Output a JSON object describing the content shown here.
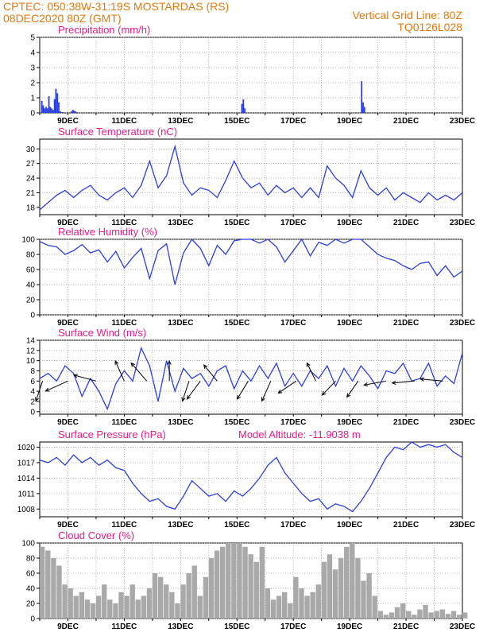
{
  "header": {
    "line1_left": "CPTEC:   050:38W-31:19S   MOSTARDAS (RS)",
    "line2_left": "08DEC2020 80Z (GMT)",
    "line1_right": "Vertical Grid Line: 80Z",
    "line2_right": "TQ0126L028"
  },
  "colors": {
    "series": "#2a3fe0",
    "bars_precip": "#2a3fe0",
    "bars_cloud": "#a9a9a9",
    "title": "#e0208a",
    "header": "#e07a10"
  },
  "chart_data": [
    {
      "type": "bar",
      "title": "Precipitation (mm/h)",
      "xlabels": [
        "9DEC",
        "11DEC",
        "13DEC",
        "15DEC",
        "17DEC",
        "19DEC",
        "21DEC",
        "23DEC"
      ],
      "ylim": [
        0,
        5
      ],
      "yticks": [
        0,
        1,
        2,
        3,
        4,
        5
      ],
      "x_day": [
        8.05,
        8.1,
        8.15,
        8.2,
        8.25,
        8.3,
        8.35,
        8.4,
        8.45,
        8.5,
        8.55,
        8.6,
        8.65,
        8.7,
        8.75,
        8.8,
        9.1,
        9.15,
        9.2,
        9.25,
        9.3,
        15.15,
        15.2,
        15.25,
        19.4,
        19.45,
        19.5
      ],
      "values": [
        0.8,
        0.5,
        0.3,
        0.4,
        0.3,
        1.1,
        0.4,
        0.3,
        0.2,
        0.9,
        1.6,
        1.3,
        0.7,
        0.1,
        0.05,
        0.05,
        0.1,
        0.2,
        0.15,
        0.1,
        0.05,
        0.6,
        0.9,
        0.3,
        2.1,
        0.7,
        0.4
      ]
    },
    {
      "type": "line",
      "title": "Surface Temperature (nC)",
      "xlabels": [
        "9DEC",
        "11DEC",
        "13DEC",
        "15DEC",
        "17DEC",
        "19DEC",
        "21DEC",
        "23DEC"
      ],
      "ylim": [
        16.5,
        32
      ],
      "yticks": [
        18,
        21,
        24,
        27,
        30
      ],
      "x_day": [
        8.0,
        8.3,
        8.6,
        8.9,
        9.2,
        9.5,
        9.8,
        10.1,
        10.4,
        10.7,
        11.0,
        11.3,
        11.6,
        11.9,
        12.2,
        12.5,
        12.8,
        13.1,
        13.4,
        13.7,
        14.0,
        14.3,
        14.6,
        14.9,
        15.2,
        15.5,
        15.8,
        16.1,
        16.4,
        16.7,
        17.0,
        17.3,
        17.6,
        17.9,
        18.2,
        18.5,
        18.8,
        19.1,
        19.4,
        19.7,
        20.0,
        20.3,
        20.6,
        20.9,
        21.2,
        21.5,
        21.8,
        22.1,
        22.4,
        22.7,
        23.0
      ],
      "values": [
        17.5,
        19.0,
        20.5,
        21.5,
        20.0,
        21.5,
        22.5,
        20.5,
        19.5,
        21.0,
        22.0,
        20.0,
        22.5,
        27.5,
        22.0,
        24.5,
        30.5,
        23.0,
        20.5,
        22.0,
        21.5,
        20.0,
        23.5,
        27.5,
        24.0,
        22.0,
        23.0,
        20.5,
        22.5,
        21.0,
        22.0,
        20.0,
        22.0,
        20.0,
        26.5,
        24.0,
        22.5,
        20.0,
        25.5,
        22.0,
        20.5,
        22.0,
        19.5,
        21.0,
        20.0,
        19.0,
        21.0,
        19.5,
        20.5,
        19.5,
        21.0
      ]
    },
    {
      "type": "line",
      "title": "Relative Humidity (%)",
      "xlabels": [
        "9DEC",
        "11DEC",
        "13DEC",
        "15DEC",
        "17DEC",
        "19DEC",
        "21DEC",
        "23DEC"
      ],
      "ylim": [
        0,
        100
      ],
      "yticks": [
        0,
        20,
        40,
        60,
        80,
        100
      ],
      "x_day": [
        8.0,
        8.3,
        8.6,
        8.9,
        9.2,
        9.5,
        9.8,
        10.1,
        10.4,
        10.7,
        11.0,
        11.3,
        11.6,
        11.9,
        12.2,
        12.5,
        12.8,
        13.1,
        13.4,
        13.7,
        14.0,
        14.3,
        14.6,
        14.9,
        15.2,
        15.5,
        15.8,
        16.1,
        16.4,
        16.7,
        17.0,
        17.3,
        17.6,
        17.9,
        18.2,
        18.5,
        18.8,
        19.1,
        19.4,
        19.7,
        20.0,
        20.3,
        20.6,
        20.9,
        21.2,
        21.5,
        21.8,
        22.1,
        22.4,
        22.7,
        23.0
      ],
      "values": [
        97,
        92,
        90,
        80,
        85,
        93,
        82,
        86,
        70,
        84,
        62,
        76,
        88,
        48,
        85,
        94,
        40,
        82,
        100,
        88,
        65,
        92,
        80,
        98,
        100,
        100,
        95,
        100,
        90,
        70,
        85,
        100,
        78,
        96,
        92,
        100,
        95,
        100,
        100,
        90,
        80,
        75,
        72,
        65,
        60,
        68,
        70,
        52,
        65,
        50,
        58
      ]
    },
    {
      "type": "line",
      "title": "Surface Wind (m/s)",
      "xlabels": [
        "9DEC",
        "11DEC",
        "13DEC",
        "15DEC",
        "17DEC",
        "19DEC",
        "21DEC",
        "23DEC"
      ],
      "ylim": [
        -0.5,
        14
      ],
      "yticks": [
        0,
        2,
        4,
        6,
        8,
        10,
        12,
        14
      ],
      "x_day": [
        8.0,
        8.3,
        8.6,
        8.9,
        9.2,
        9.5,
        9.8,
        10.1,
        10.4,
        10.7,
        11.0,
        11.3,
        11.6,
        11.9,
        12.2,
        12.5,
        12.8,
        13.1,
        13.4,
        13.7,
        14.0,
        14.3,
        14.6,
        14.9,
        15.2,
        15.5,
        15.8,
        16.1,
        16.4,
        16.7,
        17.0,
        17.3,
        17.6,
        17.9,
        18.2,
        18.5,
        18.8,
        19.1,
        19.4,
        19.7,
        20.0,
        20.3,
        20.6,
        20.9,
        21.2,
        21.5,
        21.8,
        22.1,
        22.4,
        22.7,
        23.0
      ],
      "values": [
        6.5,
        7.5,
        6.0,
        9.0,
        7.5,
        3.0,
        6.5,
        4.0,
        0.5,
        5.5,
        8.0,
        6.0,
        12.5,
        9.0,
        2.0,
        10.0,
        4.0,
        8.5,
        6.5,
        7.5,
        5.0,
        8.0,
        9.0,
        4.5,
        8.0,
        6.0,
        9.0,
        6.5,
        9.5,
        5.0,
        7.5,
        5.0,
        8.0,
        6.5,
        9.0,
        5.0,
        8.5,
        6.0,
        9.0,
        7.0,
        4.5,
        8.0,
        7.5,
        9.5,
        6.0,
        6.5,
        9.5,
        5.0,
        7.0,
        5.5,
        11.5
      ],
      "arrows": [
        {
          "day": 8.1,
          "dx": -0.3,
          "dy": 1
        },
        {
          "day": 9.0,
          "dx": -1.0,
          "dy": 0.5
        },
        {
          "day": 10.0,
          "dx": -1.0,
          "dy": -0.3
        },
        {
          "day": 11.0,
          "dx": -0.4,
          "dy": -1.0
        },
        {
          "day": 11.8,
          "dx": -0.7,
          "dy": -0.9
        },
        {
          "day": 12.6,
          "dx": 0.0,
          "dy": -1.0
        },
        {
          "day": 13.3,
          "dx": -0.3,
          "dy": 1.0
        },
        {
          "day": 13.7,
          "dx": -0.6,
          "dy": 0.9
        },
        {
          "day": 14.3,
          "dx": -0.6,
          "dy": -0.8
        },
        {
          "day": 15.4,
          "dx": -0.5,
          "dy": 0.9
        },
        {
          "day": 16.2,
          "dx": -0.4,
          "dy": 1.0
        },
        {
          "day": 17.1,
          "dx": -0.8,
          "dy": 0.6
        },
        {
          "day": 17.8,
          "dx": -0.4,
          "dy": -0.9
        },
        {
          "day": 18.5,
          "dx": -0.6,
          "dy": 0.7
        },
        {
          "day": 19.3,
          "dx": -0.5,
          "dy": 0.8
        },
        {
          "day": 20.3,
          "dx": -1.0,
          "dy": 0.2
        },
        {
          "day": 21.3,
          "dx": -1.0,
          "dy": 0.1
        },
        {
          "day": 22.3,
          "dx": -1.0,
          "dy": -0.1
        }
      ]
    },
    {
      "type": "line",
      "title": "Surface Pressure (hPa)",
      "annotation": "Model Altitude: -11.9038 m",
      "xlabels": [
        "9DEC",
        "11DEC",
        "13DEC",
        "15DEC",
        "17DEC",
        "19DEC",
        "21DEC",
        "23DEC"
      ],
      "ylim": [
        1006.5,
        1021
      ],
      "yticks": [
        1008,
        1011,
        1014,
        1017,
        1020
      ],
      "x_day": [
        8.0,
        8.3,
        8.6,
        8.9,
        9.2,
        9.5,
        9.8,
        10.1,
        10.4,
        10.7,
        11.0,
        11.3,
        11.6,
        11.9,
        12.2,
        12.5,
        12.8,
        13.1,
        13.4,
        13.7,
        14.0,
        14.3,
        14.6,
        14.9,
        15.2,
        15.5,
        15.8,
        16.1,
        16.4,
        16.7,
        17.0,
        17.3,
        17.6,
        17.9,
        18.2,
        18.5,
        18.8,
        19.1,
        19.4,
        19.7,
        20.0,
        20.3,
        20.6,
        20.9,
        21.2,
        21.5,
        21.8,
        22.1,
        22.4,
        22.7,
        23.0
      ],
      "values": [
        1017.5,
        1017.0,
        1018.0,
        1016.5,
        1018.5,
        1017.0,
        1018.0,
        1016.5,
        1017.5,
        1016.0,
        1015.5,
        1013.0,
        1011.0,
        1009.5,
        1010.0,
        1008.5,
        1008.0,
        1010.5,
        1013.5,
        1012.0,
        1010.5,
        1011.0,
        1009.5,
        1011.5,
        1010.5,
        1012.0,
        1014.0,
        1016.5,
        1018.0,
        1015.0,
        1013.0,
        1011.0,
        1009.5,
        1010.0,
        1008.0,
        1009.0,
        1008.5,
        1007.5,
        1009.5,
        1012.0,
        1015.0,
        1018.0,
        1020.0,
        1019.5,
        1021.0,
        1020.0,
        1020.5,
        1020.0,
        1020.5,
        1019.0,
        1018.0
      ]
    },
    {
      "type": "bar",
      "title": "Cloud Cover (%)",
      "xlabels": [
        "9DEC",
        "11DEC",
        "13DEC",
        "15DEC",
        "17DEC",
        "19DEC",
        "21DEC",
        "23DEC"
      ],
      "ylim": [
        0,
        100
      ],
      "yticks": [
        0,
        20,
        40,
        60,
        80,
        100
      ],
      "x_day": [
        8.0,
        8.2,
        8.4,
        8.6,
        8.8,
        9.0,
        9.2,
        9.4,
        9.6,
        9.8,
        10.0,
        10.2,
        10.4,
        10.6,
        10.8,
        11.0,
        11.2,
        11.4,
        11.6,
        11.8,
        12.0,
        12.2,
        12.4,
        12.6,
        12.8,
        13.0,
        13.2,
        13.4,
        13.6,
        13.8,
        14.0,
        14.2,
        14.4,
        14.6,
        14.8,
        15.0,
        15.2,
        15.4,
        15.6,
        15.8,
        16.0,
        16.2,
        16.4,
        16.6,
        16.8,
        17.0,
        17.2,
        17.4,
        17.6,
        17.8,
        18.0,
        18.2,
        18.4,
        18.6,
        18.8,
        19.0,
        19.2,
        19.4,
        19.6,
        19.8,
        20.0,
        20.2,
        20.4,
        20.6,
        20.8,
        21.0,
        21.2,
        21.4,
        21.6,
        21.8,
        22.0,
        22.2,
        22.4,
        22.6,
        22.8,
        23.0
      ],
      "values": [
        95,
        90,
        80,
        70,
        45,
        40,
        30,
        35,
        25,
        20,
        30,
        45,
        25,
        20,
        35,
        30,
        45,
        25,
        30,
        40,
        60,
        55,
        45,
        35,
        20,
        45,
        60,
        70,
        30,
        55,
        80,
        90,
        95,
        100,
        100,
        100,
        95,
        85,
        75,
        95,
        40,
        25,
        30,
        35,
        20,
        55,
        40,
        30,
        35,
        45,
        75,
        85,
        65,
        80,
        95,
        100,
        80,
        50,
        60,
        30,
        10,
        5,
        8,
        15,
        20,
        10,
        5,
        12,
        18,
        8,
        10,
        12,
        6,
        10,
        5,
        8
      ]
    }
  ]
}
